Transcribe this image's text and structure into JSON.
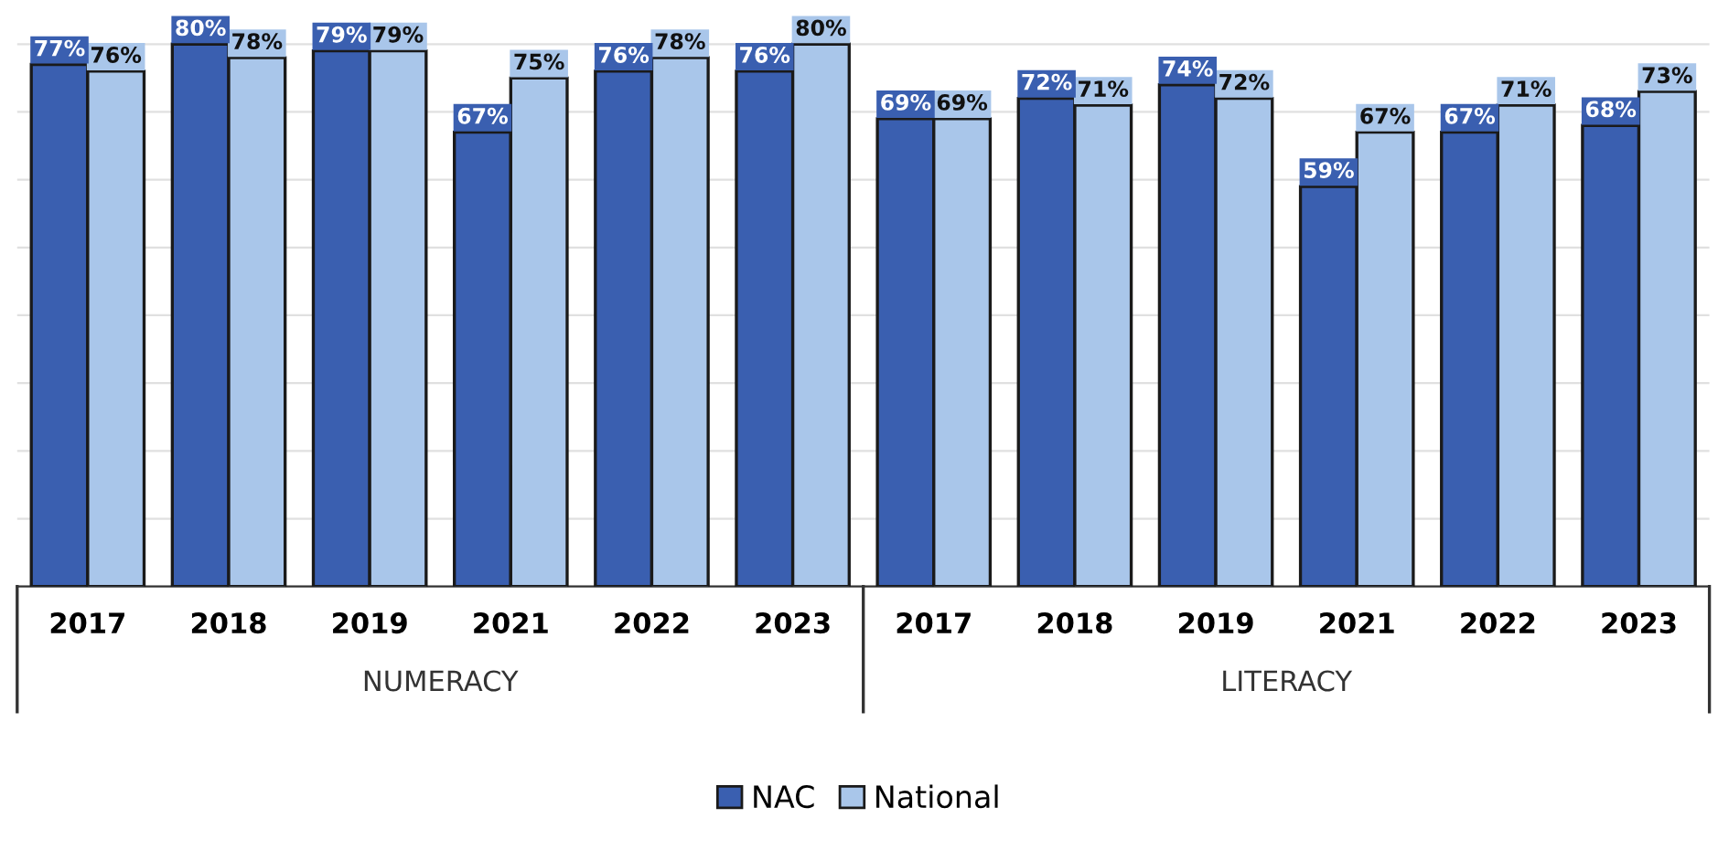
{
  "chart_data": {
    "type": "bar",
    "categories": [
      "2017",
      "2018",
      "2019",
      "2021",
      "2022",
      "2023",
      "2017",
      "2018",
      "2019",
      "2021",
      "2022",
      "2023"
    ],
    "series": [
      {
        "name": "NAC",
        "color": "#3a5fb0",
        "values": [
          77,
          80,
          79,
          67,
          76,
          76,
          69,
          72,
          74,
          59,
          67,
          68
        ],
        "value_labels": [
          "77%",
          "80%",
          "79%",
          "67%",
          "76%",
          "76%",
          "69%",
          "72%",
          "74%",
          "59%",
          "67%",
          "68%"
        ]
      },
      {
        "name": "National",
        "color": "#a9c6ea",
        "values": [
          76,
          78,
          79,
          75,
          78,
          80,
          69,
          71,
          72,
          67,
          71,
          73
        ],
        "value_labels": [
          "76%",
          "78%",
          "79%",
          "75%",
          "78%",
          "80%",
          "69%",
          "71%",
          "72%",
          "67%",
          "71%",
          "73%"
        ]
      }
    ],
    "annotations": [
      "NUMERACY",
      "LITERACY"
    ],
    "yticks": [
      {
        "value": 0,
        "label": null
      },
      {
        "value": 10,
        "label": null
      },
      {
        "value": 20,
        "label": null
      },
      {
        "value": 30,
        "label": null
      },
      {
        "value": 40,
        "label": null
      },
      {
        "value": 50,
        "label": null
      },
      {
        "value": 60,
        "label": null
      },
      {
        "value": 70,
        "label": null
      },
      {
        "value": 80,
        "label": null
      }
    ],
    "tick_labels": "x",
    "grid": "y",
    "legend": "bottom"
  }
}
